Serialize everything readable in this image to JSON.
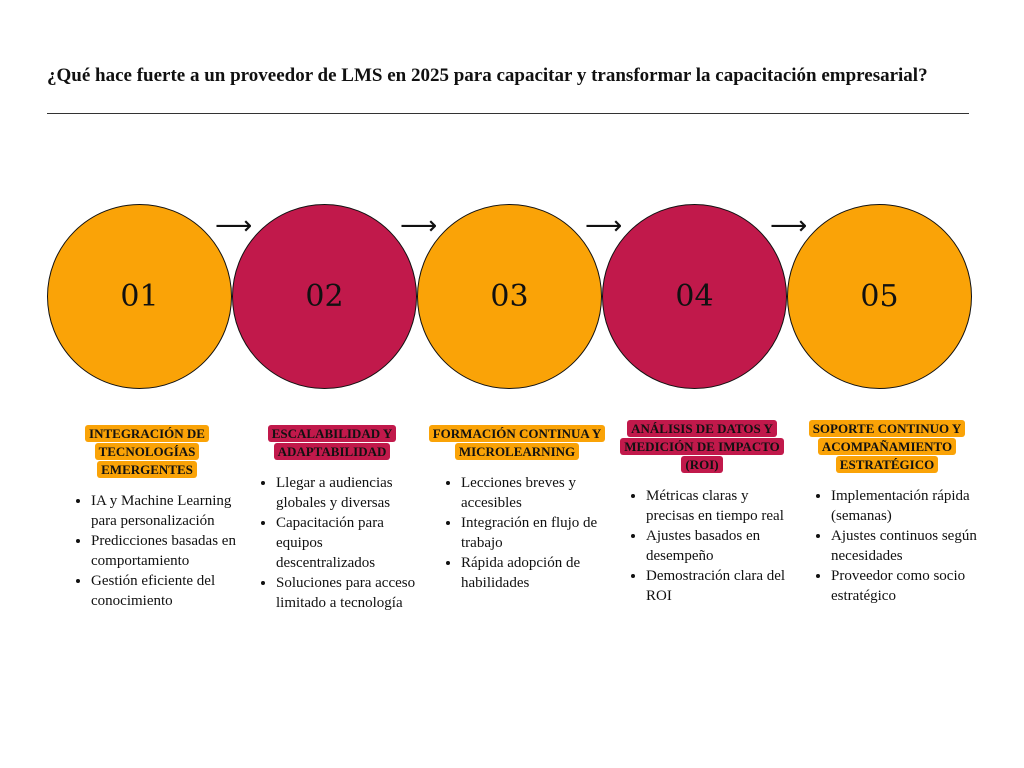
{
  "title": "¿Qué hace fuerte a un proveedor de LMS en 2025 para capacitar y transformar la capacitación empresarial?",
  "colors": {
    "orange": "#FAA307",
    "crimson": "#C1194B"
  },
  "steps": [
    {
      "number": "01",
      "color": "#FAA307",
      "label": "INTEGRACIÓN DE TECNOLOGÍAS EMERGENTES",
      "bullets": [
        "IA y Machine Learning para personalización",
        "Predicciones basadas en comportamiento",
        "Gestión eficiente del conocimiento"
      ]
    },
    {
      "number": "02",
      "color": "#C1194B",
      "label": "ESCALABILIDAD Y ADAPTABILIDAD",
      "bullets": [
        "Llegar a audiencias globales y diversas",
        "Capacitación para equipos descentralizados",
        "Soluciones para acceso limitado a tecnología"
      ]
    },
    {
      "number": "03",
      "color": "#FAA307",
      "label": "FORMACIÓN CONTINUA Y MICROLEARNING",
      "bullets": [
        "Lecciones breves y accesibles",
        "Integración en flujo de trabajo",
        "Rápida adopción de habilidades"
      ]
    },
    {
      "number": "04",
      "color": "#C1194B",
      "label": "ANÁLISIS DE DATOS Y MEDICIÓN DE IMPACTO (ROI)",
      "bullets": [
        "Métricas claras y precisas en tiempo real",
        "Ajustes basados en desempeño",
        "Demostración clara del ROI"
      ]
    },
    {
      "number": "05",
      "color": "#FAA307",
      "label": "SOPORTE CONTINUO Y ACOMPAÑAMIENTO ESTRATÉGICO",
      "bullets": [
        "Implementación rápida (semanas)",
        "Ajustes continuos según necesidades",
        "Proveedor como socio estratégico"
      ]
    }
  ],
  "arrow": "⟶"
}
